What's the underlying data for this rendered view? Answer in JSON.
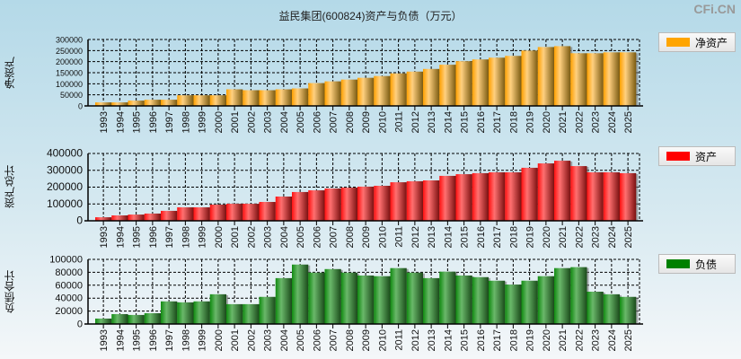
{
  "title": "益民集团(600824)资产与负债（万元）",
  "watermark": "CFi.CN",
  "colors": {
    "equity": "#ffa500",
    "assets": "#ff0000",
    "liabilities": "#008000"
  },
  "chart_data": [
    {
      "type": "bar",
      "ylabel": "净资产",
      "legend": "净资产",
      "legend_position": "right",
      "grid": true,
      "ylim": [
        0,
        300000
      ],
      "yticks": [
        0,
        50000,
        100000,
        150000,
        200000,
        250000,
        300000
      ],
      "categories": [
        "1993",
        "1994",
        "1995",
        "1996",
        "1997",
        "1998",
        "1999",
        "2000",
        "2001",
        "2002",
        "2003",
        "2004",
        "2005",
        "2006",
        "2007",
        "2008",
        "2009",
        "2010",
        "2011",
        "2012",
        "2013",
        "2014",
        "2015",
        "2016",
        "2017",
        "2018",
        "2019",
        "2020",
        "2021",
        "2022",
        "2023",
        "2024",
        "2025"
      ],
      "values": [
        16000,
        16000,
        24000,
        28000,
        28000,
        48000,
        48000,
        48000,
        75000,
        71000,
        71000,
        75000,
        79000,
        103000,
        111000,
        119000,
        127000,
        135000,
        147000,
        155000,
        167000,
        186000,
        202000,
        210000,
        218000,
        226000,
        250000,
        266000,
        270000,
        238000,
        238000,
        242000,
        242000
      ]
    },
    {
      "type": "bar",
      "ylabel": "资产总计",
      "legend": "资产",
      "legend_position": "right",
      "grid": true,
      "ylim": [
        0,
        400000
      ],
      "yticks": [
        0,
        100000,
        200000,
        300000,
        400000
      ],
      "categories": [
        "1993",
        "1994",
        "1995",
        "1996",
        "1997",
        "1998",
        "1999",
        "2000",
        "2001",
        "2002",
        "2003",
        "2004",
        "2005",
        "2006",
        "2007",
        "2008",
        "2009",
        "2010",
        "2011",
        "2012",
        "2013",
        "2014",
        "2015",
        "2016",
        "2017",
        "2018",
        "2019",
        "2020",
        "2021",
        "2022",
        "2023",
        "2024",
        "2025"
      ],
      "values": [
        21000,
        32000,
        37000,
        43000,
        59000,
        80000,
        80000,
        96000,
        101000,
        101000,
        112000,
        144000,
        171000,
        181000,
        192000,
        197000,
        203000,
        208000,
        229000,
        235000,
        240000,
        267000,
        277000,
        283000,
        288000,
        288000,
        315000,
        341000,
        357000,
        325000,
        288000,
        288000,
        283000
      ]
    },
    {
      "type": "bar",
      "ylabel": "负债合计",
      "legend": "负债",
      "legend_position": "right",
      "grid": true,
      "ylim": [
        0,
        100000
      ],
      "yticks": [
        0,
        20000,
        40000,
        60000,
        80000,
        100000
      ],
      "categories": [
        "1993",
        "1994",
        "1995",
        "1996",
        "1997",
        "1998",
        "1999",
        "2000",
        "2001",
        "2002",
        "2003",
        "2004",
        "2005",
        "2006",
        "2007",
        "2008",
        "2009",
        "2010",
        "2011",
        "2012",
        "2013",
        "2014",
        "2015",
        "2016",
        "2017",
        "2018",
        "2019",
        "2020",
        "2021",
        "2022",
        "2023",
        "2024",
        "2025"
      ],
      "values": [
        8400,
        15300,
        14000,
        16700,
        35000,
        33500,
        35000,
        46000,
        30700,
        30700,
        42000,
        71000,
        92000,
        79500,
        85000,
        79500,
        75000,
        74000,
        86500,
        79500,
        71000,
        81000,
        75000,
        72500,
        67000,
        61000,
        67000,
        74000,
        86500,
        88000,
        50000,
        46000,
        42000
      ]
    }
  ]
}
